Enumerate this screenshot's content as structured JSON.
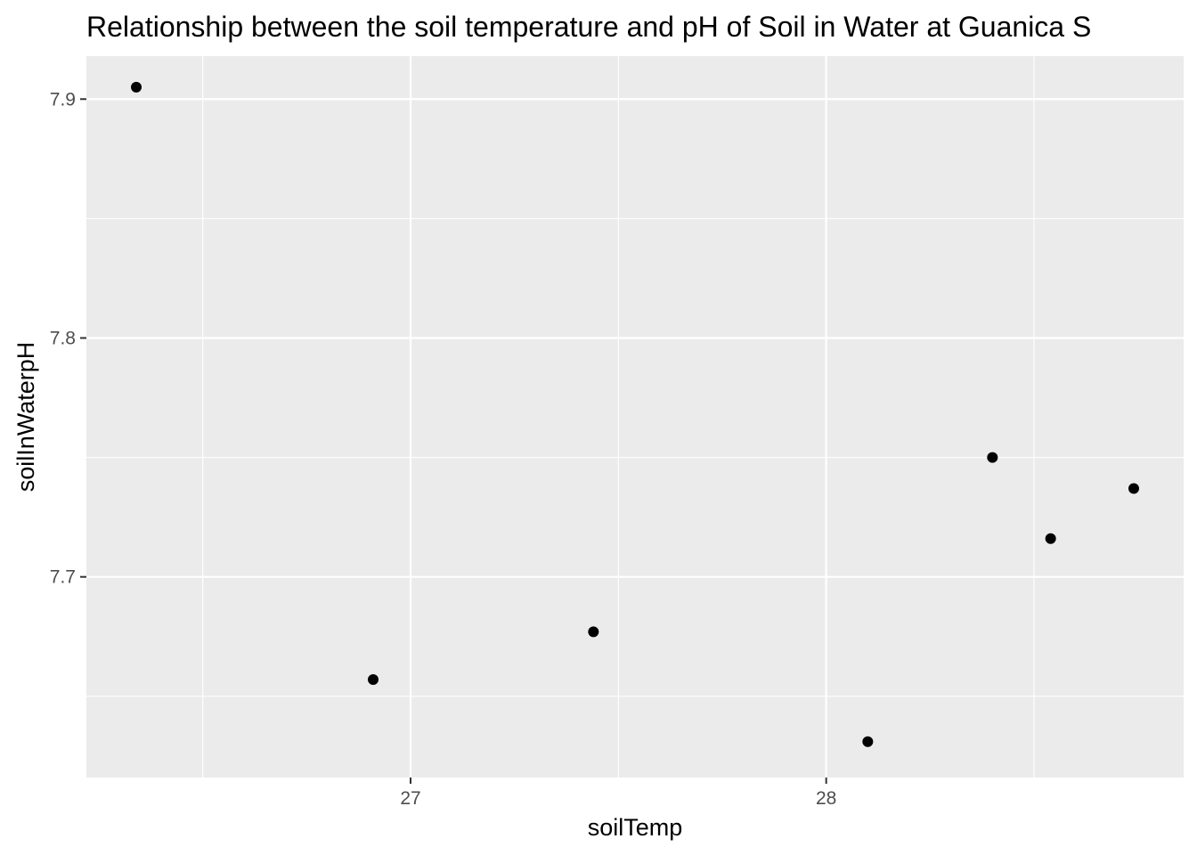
{
  "chart_data": {
    "type": "scatter",
    "title": "Relationship between the soil temperature and pH of Soil in Water at Guanica S",
    "xlabel": "soilTemp",
    "ylabel": "soilInWaterpH",
    "xlim": [
      26.22,
      28.86
    ],
    "ylim": [
      7.616,
      7.918
    ],
    "x_ticks": [
      27,
      28
    ],
    "x_tick_labels": [
      "27",
      "28"
    ],
    "y_ticks": [
      7.7,
      7.8,
      7.9
    ],
    "y_tick_labels": [
      "7.7",
      "7.8",
      "7.9"
    ],
    "grid": true,
    "legend": "none",
    "colors": {
      "panel": "#ebebeb",
      "grid": "#ffffff",
      "point": "#000000"
    },
    "points": [
      {
        "x": 26.34,
        "y": 7.905
      },
      {
        "x": 26.91,
        "y": 7.657
      },
      {
        "x": 27.44,
        "y": 7.677
      },
      {
        "x": 28.1,
        "y": 7.631
      },
      {
        "x": 28.4,
        "y": 7.75
      },
      {
        "x": 28.54,
        "y": 7.716
      },
      {
        "x": 28.74,
        "y": 7.737
      }
    ]
  }
}
